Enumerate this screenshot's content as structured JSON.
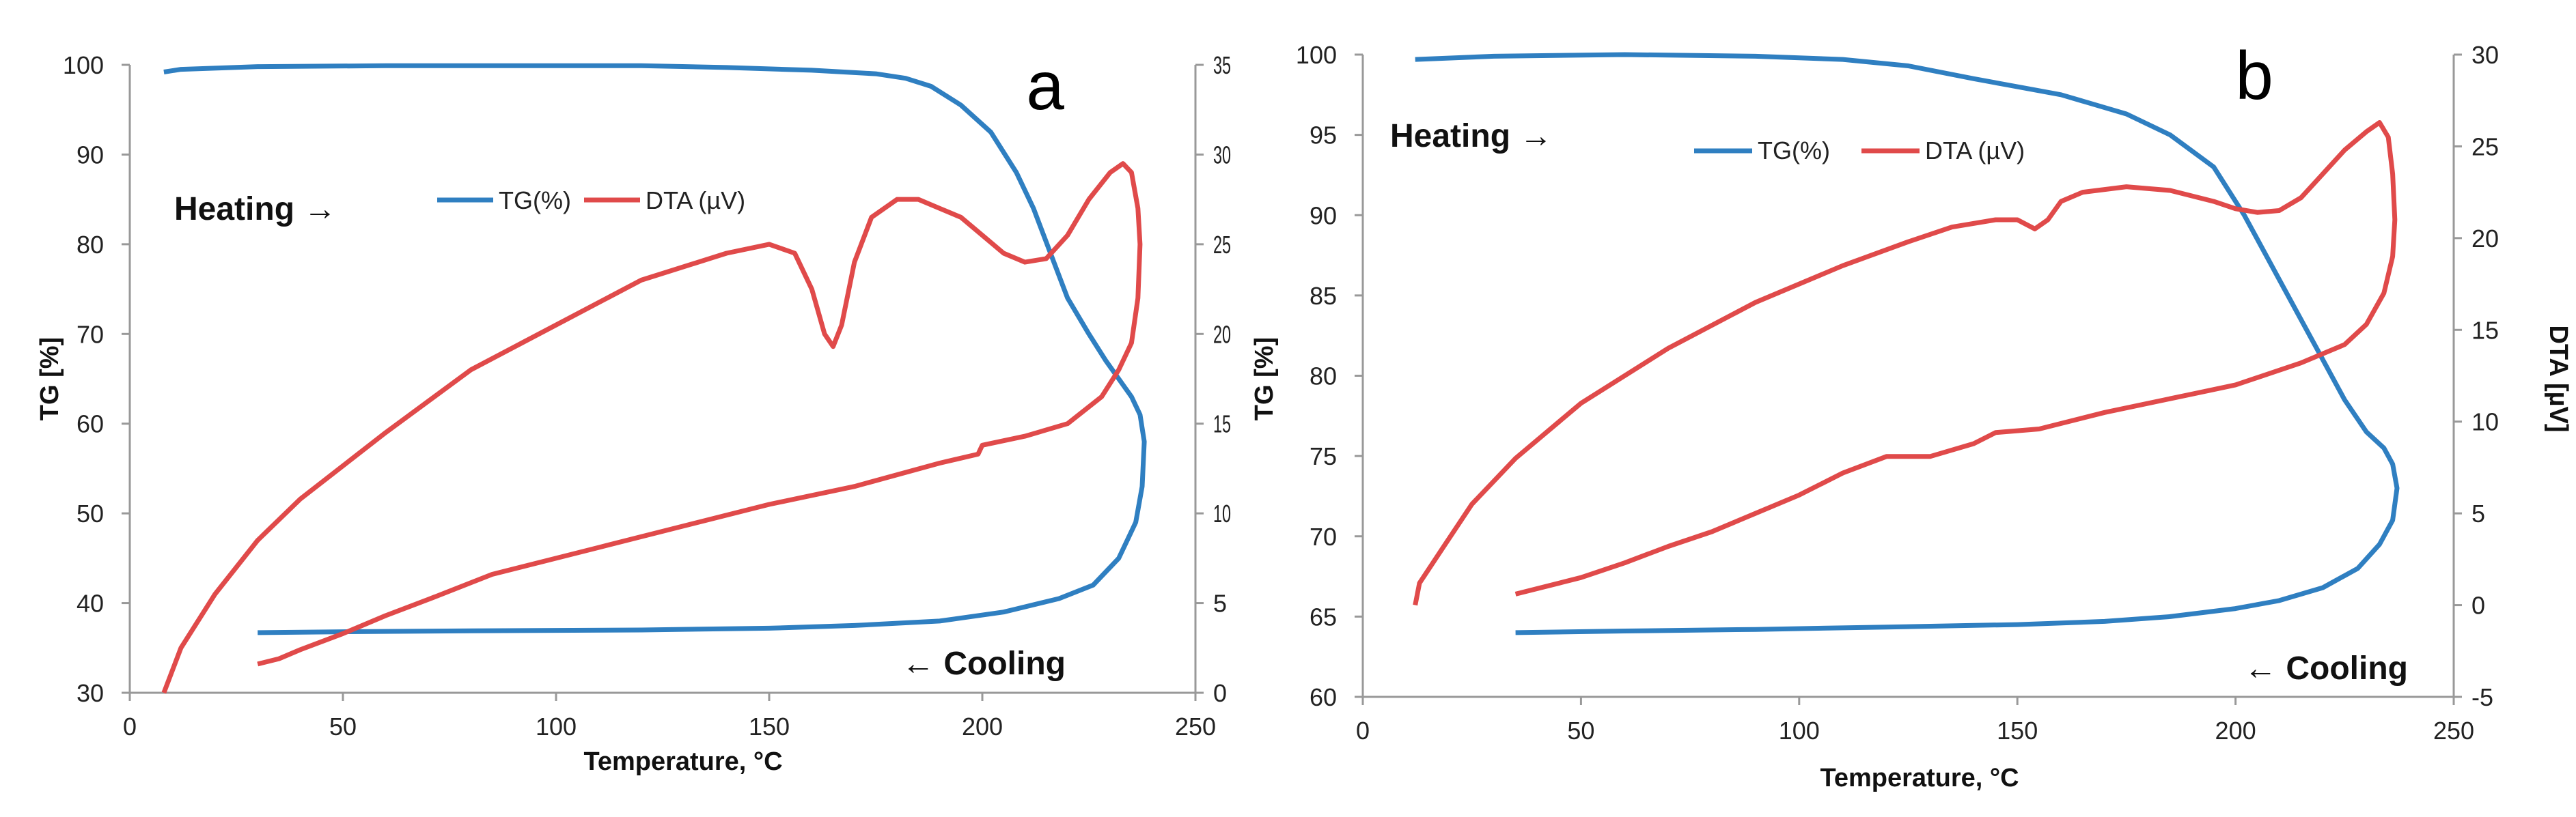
{
  "chart_data": [
    {
      "type": "line",
      "panel_label": "a",
      "xlabel": "Temperature, °C",
      "ylabel": "TG [%]",
      "y2label": "",
      "xlim": [
        0,
        250
      ],
      "ylim": [
        30,
        100
      ],
      "y2lim": [
        0,
        35
      ],
      "x_ticks": [
        "0",
        "50",
        "100",
        "150",
        "200",
        "250"
      ],
      "y_ticks": [
        "30",
        "40",
        "50",
        "60",
        "70",
        "80",
        "90",
        "100"
      ],
      "y2_ticks": [
        "0",
        "5",
        "10",
        "15",
        "20",
        "25",
        "30",
        "35"
      ],
      "y2_ticks_clipped": true,
      "grid": false,
      "annotations": {
        "heating": "Heating →",
        "cooling": "← Cooling"
      },
      "legend": [
        "TG(%)",
        "DTA (µV)"
      ],
      "series": [
        {
          "name": "TG(%)",
          "axis": "left",
          "color": "#2f7fc1",
          "points": [
            [
              8,
              99.2
            ],
            [
              12,
              99.5
            ],
            [
              30,
              99.8
            ],
            [
              60,
              99.9
            ],
            [
              90,
              99.9
            ],
            [
              120,
              99.9
            ],
            [
              140,
              99.7
            ],
            [
              160,
              99.4
            ],
            [
              175,
              99.0
            ],
            [
              182,
              98.5
            ],
            [
              188,
              97.6
            ],
            [
              195,
              95.5
            ],
            [
              202,
              92.5
            ],
            [
              208,
              88.0
            ],
            [
              212,
              84.0
            ],
            [
              216,
              79.0
            ],
            [
              220,
              74.0
            ],
            [
              225,
              70.0
            ],
            [
              229,
              67.0
            ],
            [
              232,
              65.0
            ],
            [
              235,
              63.0
            ],
            [
              237,
              61.0
            ],
            [
              238,
              58.0
            ],
            [
              237.5,
              53.0
            ],
            [
              236,
              49.0
            ],
            [
              232,
              45.0
            ],
            [
              226,
              42.0
            ],
            [
              218,
              40.5
            ],
            [
              205,
              39.0
            ],
            [
              190,
              38.0
            ],
            [
              170,
              37.5
            ],
            [
              150,
              37.2
            ],
            [
              120,
              37.0
            ],
            [
              80,
              36.9
            ],
            [
              50,
              36.8
            ],
            [
              30,
              36.7
            ]
          ]
        },
        {
          "name": "DTA (µV)",
          "axis": "right",
          "color": "#e04a4a",
          "points": [
            [
              8,
              0.0
            ],
            [
              12,
              2.5
            ],
            [
              20,
              5.5
            ],
            [
              30,
              8.5
            ],
            [
              40,
              10.8
            ],
            [
              60,
              14.5
            ],
            [
              80,
              18.0
            ],
            [
              100,
              20.5
            ],
            [
              120,
              23.0
            ],
            [
              140,
              24.5
            ],
            [
              150,
              25.0
            ],
            [
              156,
              24.5
            ],
            [
              160,
              22.5
            ],
            [
              163,
              20.0
            ],
            [
              165,
              19.3
            ],
            [
              167,
              20.5
            ],
            [
              170,
              24.0
            ],
            [
              174,
              26.5
            ],
            [
              180,
              27.5
            ],
            [
              185,
              27.5
            ],
            [
              190,
              27.0
            ],
            [
              195,
              26.5
            ],
            [
              200,
              25.5
            ],
            [
              205,
              24.5
            ],
            [
              210,
              24.0
            ],
            [
              215,
              24.2
            ],
            [
              220,
              25.5
            ],
            [
              225,
              27.5
            ],
            [
              230,
              29.0
            ],
            [
              233,
              29.5
            ],
            [
              235,
              29.0
            ],
            [
              236.5,
              27.0
            ],
            [
              237,
              25.0
            ],
            [
              236.5,
              22.0
            ],
            [
              235,
              19.5
            ],
            [
              232,
              18.0
            ],
            [
              228,
              16.5
            ],
            [
              220,
              15.0
            ],
            [
              210,
              14.3
            ],
            [
              200,
              13.8
            ],
            [
              199,
              13.3
            ],
            [
              190,
              12.8
            ],
            [
              170,
              11.5
            ],
            [
              150,
              10.5
            ],
            [
              130,
              9.3
            ],
            [
              110,
              8.1
            ],
            [
              100,
              7.5
            ],
            [
              85,
              6.6
            ],
            [
              70,
              5.2
            ],
            [
              60,
              4.3
            ],
            [
              50,
              3.3
            ],
            [
              40,
              2.4
            ],
            [
              35,
              1.9
            ],
            [
              30,
              1.6
            ]
          ]
        }
      ]
    },
    {
      "type": "line",
      "panel_label": "b",
      "xlabel": "Temperature, °C",
      "ylabel": "TG [%]",
      "y2label": "DTA [µV]",
      "xlim": [
        0,
        250
      ],
      "ylim": [
        60,
        100
      ],
      "y2lim": [
        -5,
        30
      ],
      "x_ticks": [
        "0",
        "50",
        "100",
        "150",
        "200",
        "250"
      ],
      "y_ticks": [
        "60",
        "65",
        "70",
        "75",
        "80",
        "85",
        "90",
        "95",
        "100"
      ],
      "y2_ticks": [
        "-5",
        "0",
        "5",
        "10",
        "15",
        "20",
        "25",
        "30"
      ],
      "y2_ticks_clipped": false,
      "grid": false,
      "annotations": {
        "heating": "Heating →",
        "cooling": "← Cooling"
      },
      "legend": [
        "TG(%)",
        "DTA (µV)"
      ],
      "series": [
        {
          "name": "TG(%)",
          "axis": "left",
          "color": "#2f7fc1",
          "points": [
            [
              12,
              99.7
            ],
            [
              30,
              99.9
            ],
            [
              60,
              100.0
            ],
            [
              90,
              99.9
            ],
            [
              110,
              99.7
            ],
            [
              125,
              99.3
            ],
            [
              140,
              98.5
            ],
            [
              160,
              97.5
            ],
            [
              175,
              96.3
            ],
            [
              185,
              95.0
            ],
            [
              195,
              93.0
            ],
            [
              202,
              90.0
            ],
            [
              210,
              86.0
            ],
            [
              218,
              82.0
            ],
            [
              225,
              78.5
            ],
            [
              230,
              76.5
            ],
            [
              234,
              75.5
            ],
            [
              236,
              74.5
            ],
            [
              237,
              73.0
            ],
            [
              236,
              71.0
            ],
            [
              233,
              69.5
            ],
            [
              228,
              68.0
            ],
            [
              220,
              66.8
            ],
            [
              210,
              66.0
            ],
            [
              200,
              65.5
            ],
            [
              185,
              65.0
            ],
            [
              170,
              64.7
            ],
            [
              150,
              64.5
            ],
            [
              120,
              64.35
            ],
            [
              90,
              64.2
            ],
            [
              60,
              64.1
            ],
            [
              35,
              64.0
            ]
          ]
        },
        {
          "name": "DTA (µV)",
          "axis": "right",
          "color": "#e04a4a",
          "points": [
            [
              12,
              0.0
            ],
            [
              13,
              1.2
            ],
            [
              18,
              3.0
            ],
            [
              25,
              5.5
            ],
            [
              35,
              8.0
            ],
            [
              50,
              11.0
            ],
            [
              70,
              14.0
            ],
            [
              90,
              16.5
            ],
            [
              110,
              18.5
            ],
            [
              125,
              19.8
            ],
            [
              135,
              20.6
            ],
            [
              145,
              21.0
            ],
            [
              150,
              21.0
            ],
            [
              154,
              20.5
            ],
            [
              157,
              21.0
            ],
            [
              160,
              22.0
            ],
            [
              165,
              22.5
            ],
            [
              175,
              22.8
            ],
            [
              185,
              22.6
            ],
            [
              195,
              22.0
            ],
            [
              200,
              21.6
            ],
            [
              205,
              21.4
            ],
            [
              210,
              21.5
            ],
            [
              215,
              22.2
            ],
            [
              220,
              23.5
            ],
            [
              225,
              24.8
            ],
            [
              230,
              25.8
            ],
            [
              233,
              26.3
            ],
            [
              235,
              25.5
            ],
            [
              236,
              23.5
            ],
            [
              236.5,
              21.0
            ],
            [
              236,
              19.0
            ],
            [
              234,
              17.0
            ],
            [
              230,
              15.3
            ],
            [
              225,
              14.2
            ],
            [
              215,
              13.2
            ],
            [
              200,
              12.0
            ],
            [
              190,
              11.5
            ],
            [
              170,
              10.5
            ],
            [
              155,
              9.6
            ],
            [
              145,
              9.4
            ],
            [
              140,
              8.8
            ],
            [
              130,
              8.1
            ],
            [
              120,
              8.1
            ],
            [
              110,
              7.2
            ],
            [
              100,
              6.0
            ],
            [
              90,
              5.0
            ],
            [
              80,
              4.0
            ],
            [
              70,
              3.2
            ],
            [
              60,
              2.3
            ],
            [
              50,
              1.5
            ],
            [
              45,
              1.2
            ],
            [
              35,
              0.6
            ]
          ]
        }
      ]
    }
  ]
}
